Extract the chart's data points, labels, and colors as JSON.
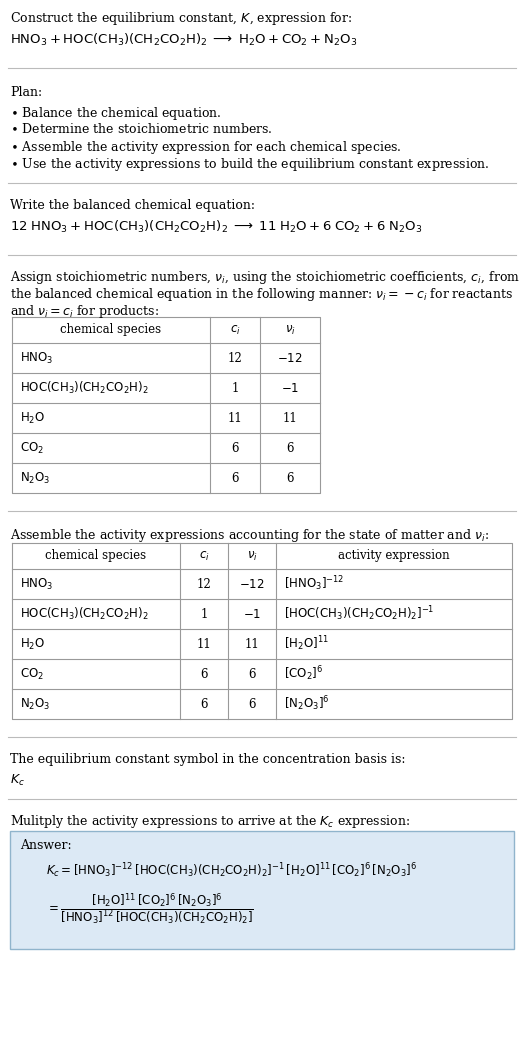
{
  "bg_color": "#ffffff",
  "text_color": "#000000",
  "title_line1": "Construct the equilibrium constant, $K$, expression for:",
  "title_line2": "$\\mathrm{HNO_3 + HOC(CH_3)(CH_2CO_2H)_2 \\;\\longrightarrow\\; H_2O + CO_2 + N_2O_3}$",
  "plan_header": "Plan:",
  "plan_items": [
    "$\\bullet$ Balance the chemical equation.",
    "$\\bullet$ Determine the stoichiometric numbers.",
    "$\\bullet$ Assemble the activity expression for each chemical species.",
    "$\\bullet$ Use the activity expressions to build the equilibrium constant expression."
  ],
  "balanced_header": "Write the balanced chemical equation:",
  "balanced_eq": "$\\mathrm{12\\;HNO_3 + HOC(CH_3)(CH_2CO_2H)_2 \\;\\longrightarrow\\; 11\\;H_2O + 6\\;CO_2 + 6\\;N_2O_3}$",
  "stoich_text1": "Assign stoichiometric numbers, $\\nu_i$, using the stoichiometric coefficients, $c_i$, from",
  "stoich_text2": "the balanced chemical equation in the following manner: $\\nu_i = -c_i$ for reactants",
  "stoich_text3": "and $\\nu_i = c_i$ for products:",
  "table1_data": [
    [
      "$\\mathrm{HNO_3}$",
      "12",
      "$-12$"
    ],
    [
      "$\\mathrm{HOC(CH_3)(CH_2CO_2H)_2}$",
      "1",
      "$-1$"
    ],
    [
      "$\\mathrm{H_2O}$",
      "11",
      "11"
    ],
    [
      "$\\mathrm{CO_2}$",
      "6",
      "6"
    ],
    [
      "$\\mathrm{N_2O_3}$",
      "6",
      "6"
    ]
  ],
  "activity_header": "Assemble the activity expressions accounting for the state of matter and $\\nu_i$:",
  "table2_data": [
    [
      "$\\mathrm{HNO_3}$",
      "12",
      "$-12$",
      "$[\\mathrm{HNO_3}]^{-12}$"
    ],
    [
      "$\\mathrm{HOC(CH_3)(CH_2CO_2H)_2}$",
      "1",
      "$-1$",
      "$[\\mathrm{HOC(CH_3)(CH_2CO_2H)_2}]^{-1}$"
    ],
    [
      "$\\mathrm{H_2O}$",
      "11",
      "11",
      "$[\\mathrm{H_2O}]^{11}$"
    ],
    [
      "$\\mathrm{CO_2}$",
      "6",
      "6",
      "$[\\mathrm{CO_2}]^{6}$"
    ],
    [
      "$\\mathrm{N_2O_3}$",
      "6",
      "6",
      "$[\\mathrm{N_2O_3}]^{6}$"
    ]
  ],
  "kc_header": "The equilibrium constant symbol in the concentration basis is:",
  "kc_symbol": "$K_c$",
  "multiply_header": "Mulitply the activity expressions to arrive at the $K_c$ expression:",
  "answer_label": "Answer:",
  "answer_line1": "$K_c = [\\mathrm{HNO_3}]^{-12}\\,[\\mathrm{HOC(CH_3)(CH_2CO_2H)_2}]^{-1}\\,[\\mathrm{H_2O}]^{11}\\,[\\mathrm{CO_2}]^{6}\\,[\\mathrm{N_2O_3}]^{6}$",
  "answer_eq_lhs": "$= \\dfrac{[\\mathrm{H_2O}]^{11}\\,[\\mathrm{CO_2}]^{6}\\,[\\mathrm{N_2O_3}]^{6}}{[\\mathrm{HNO_3}]^{12}\\,[\\mathrm{HOC(CH_3)(CH_2CO_2H)_2}]}$",
  "answer_box_color": "#dce9f5",
  "answer_box_border": "#90b4cc",
  "line_color": "#bbbbbb",
  "table_line_color": "#999999"
}
